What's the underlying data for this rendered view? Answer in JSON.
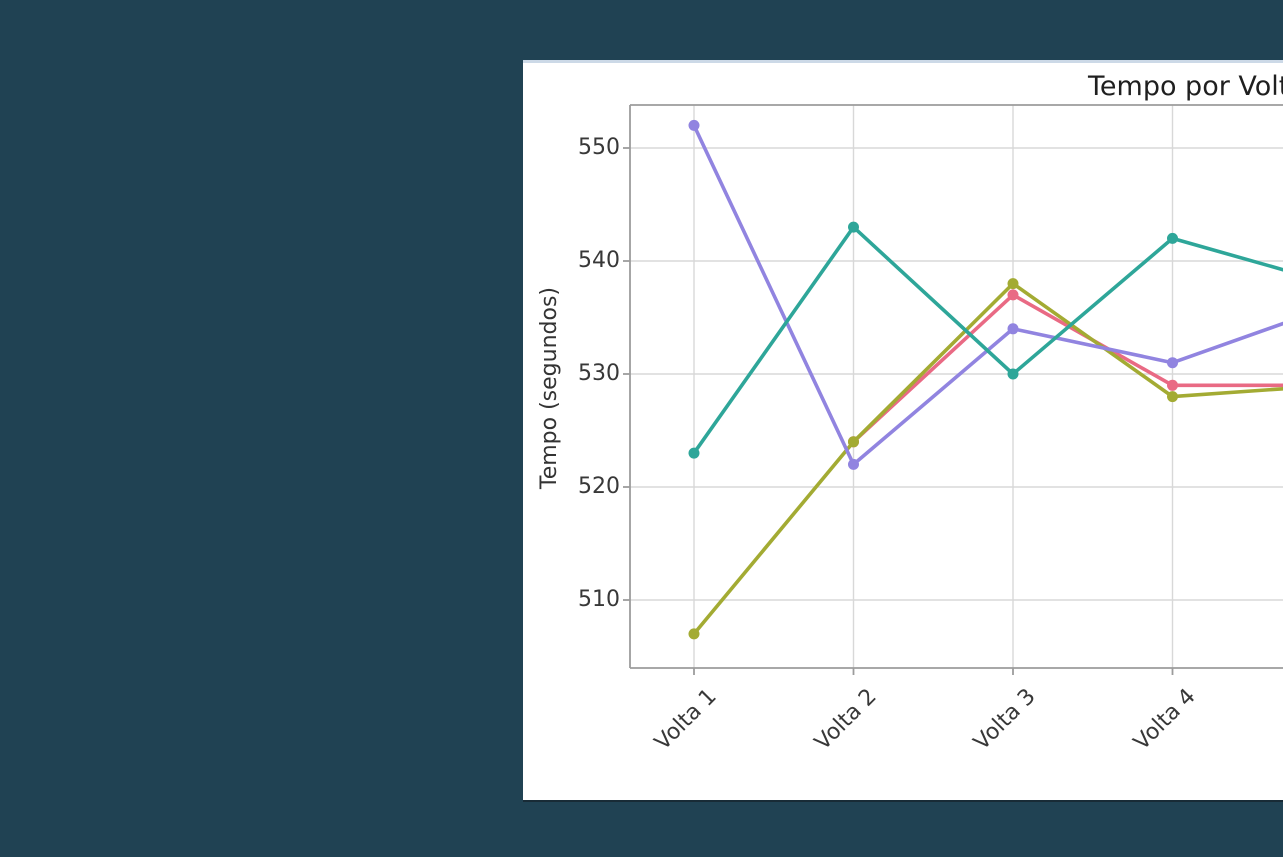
{
  "page": {
    "background_color": "#204253"
  },
  "card": {
    "background_color": "#ffffff",
    "top_edge_color": "#ccd9e7"
  },
  "chart_data": {
    "type": "line",
    "title": "Tempo por Volta",
    "title_visible_portion": "Tempo por Vo",
    "xlabel": "",
    "ylabel": "Tempo (segundos)",
    "categories": [
      "Volta 1",
      "Volta 2",
      "Volta 3",
      "Volta 4"
    ],
    "yticks": [
      510,
      520,
      530,
      540,
      550
    ],
    "ylim": [
      504.75,
      554.25
    ],
    "grid": true,
    "right_edge_clipped": true,
    "series": [
      {
        "name": "pink-series",
        "color": "#e96a84",
        "values": [
          null,
          524,
          537,
          529
        ],
        "offscreen_next_value": 529
      },
      {
        "name": "olive-series",
        "color": "#a3ab33",
        "values": [
          507,
          524,
          538,
          528
        ],
        "offscreen_next_value": 529
      },
      {
        "name": "purple-series",
        "color": "#9184e0",
        "values": [
          552,
          522,
          534,
          531
        ],
        "offscreen_next_value": 536
      },
      {
        "name": "teal-series",
        "color": "#2ea699",
        "values": [
          523,
          543,
          530,
          542
        ],
        "offscreen_next_value": 538
      }
    ]
  }
}
